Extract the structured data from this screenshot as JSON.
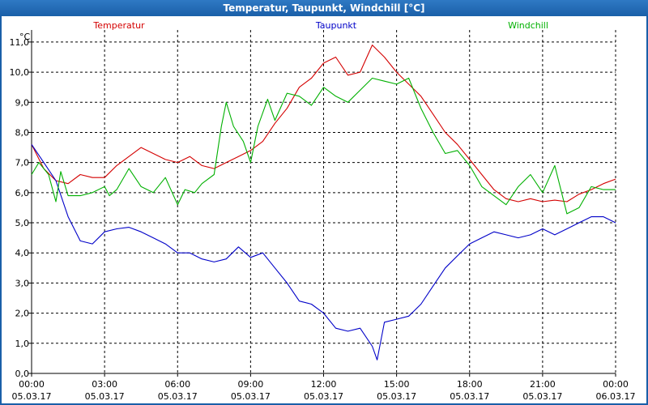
{
  "window": {
    "title": "Temperatur, Taupunkt, Windchill [°C]"
  },
  "chart_data": {
    "type": "line",
    "title": "Temperatur, Taupunkt, Windchill [°C]",
    "ylabel": "°C",
    "ylim": [
      0,
      11.4
    ],
    "xlim_hours": [
      0,
      24
    ],
    "grid": true,
    "legend_position": "top",
    "y_ticks": [
      "0,0",
      "1,0",
      "2,0",
      "3,0",
      "4,0",
      "5,0",
      "6,0",
      "7,0",
      "8,0",
      "9,0",
      "10,0",
      "11,0"
    ],
    "y_tick_values": [
      0,
      1,
      2,
      3,
      4,
      5,
      6,
      7,
      8,
      9,
      10,
      11
    ],
    "x_ticks": [
      {
        "time": "00:00",
        "date": "05.03.17"
      },
      {
        "time": "03:00",
        "date": "05.03.17"
      },
      {
        "time": "06:00",
        "date": "05.03.17"
      },
      {
        "time": "09:00",
        "date": "05.03.17"
      },
      {
        "time": "12:00",
        "date": "05.03.17"
      },
      {
        "time": "15:00",
        "date": "05.03.17"
      },
      {
        "time": "18:00",
        "date": "05.03.17"
      },
      {
        "time": "21:00",
        "date": "05.03.17"
      },
      {
        "time": "00:00",
        "date": "06.03.17"
      }
    ],
    "x_tick_hours": [
      0,
      3,
      6,
      9,
      12,
      15,
      18,
      21,
      24
    ],
    "series": [
      {
        "name": "Temperatur",
        "color": "#d40000",
        "points": [
          [
            0,
            7.6
          ],
          [
            0.5,
            6.8
          ],
          [
            1,
            6.4
          ],
          [
            1.5,
            6.3
          ],
          [
            2,
            6.6
          ],
          [
            2.5,
            6.5
          ],
          [
            3,
            6.5
          ],
          [
            3.5,
            6.9
          ],
          [
            4,
            7.2
          ],
          [
            4.5,
            7.5
          ],
          [
            5,
            7.3
          ],
          [
            5.5,
            7.1
          ],
          [
            6,
            7.0
          ],
          [
            6.5,
            7.2
          ],
          [
            7,
            6.9
          ],
          [
            7.5,
            6.8
          ],
          [
            8,
            7.0
          ],
          [
            8.5,
            7.2
          ],
          [
            9,
            7.4
          ],
          [
            9.5,
            7.7
          ],
          [
            10,
            8.3
          ],
          [
            10.5,
            8.8
          ],
          [
            11,
            9.5
          ],
          [
            11.5,
            9.8
          ],
          [
            12,
            10.3
          ],
          [
            12.5,
            10.5
          ],
          [
            13,
            9.9
          ],
          [
            13.5,
            10.0
          ],
          [
            14,
            10.9
          ],
          [
            14.5,
            10.5
          ],
          [
            15,
            10.0
          ],
          [
            15.5,
            9.6
          ],
          [
            16,
            9.2
          ],
          [
            16.5,
            8.6
          ],
          [
            17,
            8.0
          ],
          [
            17.5,
            7.6
          ],
          [
            18,
            7.1
          ],
          [
            18.5,
            6.6
          ],
          [
            19,
            6.1
          ],
          [
            19.5,
            5.8
          ],
          [
            20,
            5.7
          ],
          [
            20.5,
            5.8
          ],
          [
            21,
            5.7
          ],
          [
            21.5,
            5.75
          ],
          [
            22,
            5.7
          ],
          [
            22.5,
            5.95
          ],
          [
            23,
            6.1
          ],
          [
            23.5,
            6.3
          ],
          [
            24,
            6.45
          ]
        ]
      },
      {
        "name": "Taupunkt",
        "color": "#0000c8",
        "points": [
          [
            0,
            7.6
          ],
          [
            0.5,
            7.0
          ],
          [
            1,
            6.4
          ],
          [
            1.5,
            5.2
          ],
          [
            2,
            4.4
          ],
          [
            2.5,
            4.3
          ],
          [
            3,
            4.7
          ],
          [
            3.5,
            4.8
          ],
          [
            4,
            4.85
          ],
          [
            4.5,
            4.7
          ],
          [
            5,
            4.5
          ],
          [
            5.5,
            4.3
          ],
          [
            6,
            4.0
          ],
          [
            6.5,
            4.0
          ],
          [
            7,
            3.8
          ],
          [
            7.5,
            3.7
          ],
          [
            8,
            3.8
          ],
          [
            8.5,
            4.2
          ],
          [
            9,
            3.85
          ],
          [
            9.5,
            4.0
          ],
          [
            10,
            3.5
          ],
          [
            10.5,
            3.0
          ],
          [
            11,
            2.4
          ],
          [
            11.5,
            2.3
          ],
          [
            12,
            2.0
          ],
          [
            12.5,
            1.5
          ],
          [
            13,
            1.4
          ],
          [
            13.5,
            1.5
          ],
          [
            14,
            0.9
          ],
          [
            14.2,
            0.45
          ],
          [
            14.5,
            1.7
          ],
          [
            15,
            1.8
          ],
          [
            15.5,
            1.9
          ],
          [
            16,
            2.3
          ],
          [
            16.5,
            2.9
          ],
          [
            17,
            3.5
          ],
          [
            17.5,
            3.9
          ],
          [
            18,
            4.3
          ],
          [
            18.5,
            4.5
          ],
          [
            19,
            4.7
          ],
          [
            19.5,
            4.6
          ],
          [
            20,
            4.5
          ],
          [
            20.5,
            4.6
          ],
          [
            21,
            4.8
          ],
          [
            21.5,
            4.6
          ],
          [
            22,
            4.8
          ],
          [
            22.5,
            5.0
          ],
          [
            23,
            5.2
          ],
          [
            23.5,
            5.2
          ],
          [
            24,
            5.0
          ]
        ]
      },
      {
        "name": "Windchill",
        "color": "#00b000",
        "points": [
          [
            0,
            6.6
          ],
          [
            0.3,
            7.0
          ],
          [
            0.7,
            6.6
          ],
          [
            1,
            5.7
          ],
          [
            1.2,
            6.7
          ],
          [
            1.5,
            5.9
          ],
          [
            2,
            5.9
          ],
          [
            2.5,
            6.0
          ],
          [
            3,
            6.2
          ],
          [
            3.2,
            5.9
          ],
          [
            3.5,
            6.1
          ],
          [
            4,
            6.8
          ],
          [
            4.5,
            6.2
          ],
          [
            5,
            6.0
          ],
          [
            5.5,
            6.5
          ],
          [
            6,
            5.6
          ],
          [
            6.3,
            6.1
          ],
          [
            6.7,
            6.0
          ],
          [
            7,
            6.3
          ],
          [
            7.5,
            6.6
          ],
          [
            7.8,
            8.2
          ],
          [
            8,
            9.0
          ],
          [
            8.3,
            8.2
          ],
          [
            8.7,
            7.7
          ],
          [
            9,
            7.0
          ],
          [
            9.3,
            8.2
          ],
          [
            9.7,
            9.1
          ],
          [
            10,
            8.4
          ],
          [
            10.5,
            9.3
          ],
          [
            11,
            9.2
          ],
          [
            11.5,
            8.9
          ],
          [
            12,
            9.5
          ],
          [
            12.5,
            9.2
          ],
          [
            13,
            9.0
          ],
          [
            13.5,
            9.4
          ],
          [
            14,
            9.8
          ],
          [
            14.5,
            9.7
          ],
          [
            15,
            9.6
          ],
          [
            15.5,
            9.8
          ],
          [
            16,
            8.8
          ],
          [
            16.5,
            8.0
          ],
          [
            17,
            7.3
          ],
          [
            17.5,
            7.4
          ],
          [
            18,
            6.9
          ],
          [
            18.5,
            6.2
          ],
          [
            19,
            5.9
          ],
          [
            19.5,
            5.6
          ],
          [
            20,
            6.2
          ],
          [
            20.5,
            6.6
          ],
          [
            21,
            6.0
          ],
          [
            21.5,
            6.9
          ],
          [
            22,
            5.3
          ],
          [
            22.5,
            5.5
          ],
          [
            23,
            6.2
          ],
          [
            23.5,
            6.1
          ],
          [
            24,
            6.1
          ]
        ]
      }
    ]
  }
}
